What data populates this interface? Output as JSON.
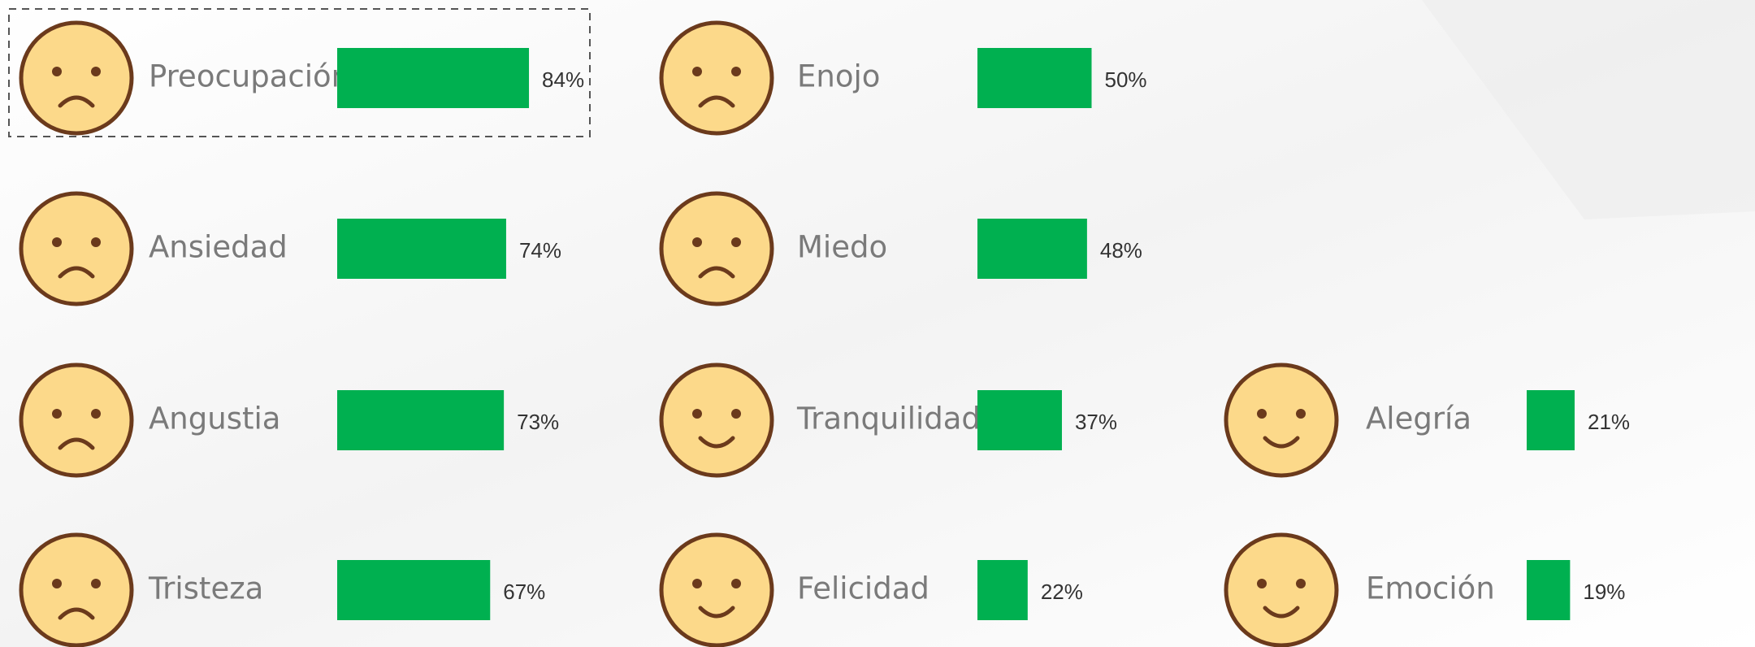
{
  "chart_data": {
    "type": "bar",
    "categories": [
      "Preocupación",
      "Ansiedad",
      "Angustia",
      "Tristeza",
      "Enojo",
      "Miedo",
      "Tranquilidad",
      "Felicidad",
      "Alegría",
      "Emoción"
    ],
    "values": [
      84,
      74,
      73,
      67,
      50,
      48,
      37,
      22,
      21,
      19
    ],
    "value_labels": [
      "84%",
      "74%",
      "73%",
      "67%",
      "50%",
      "48%",
      "37%",
      "22%",
      "21%",
      "19%"
    ],
    "color": "#00b050"
  }
}
